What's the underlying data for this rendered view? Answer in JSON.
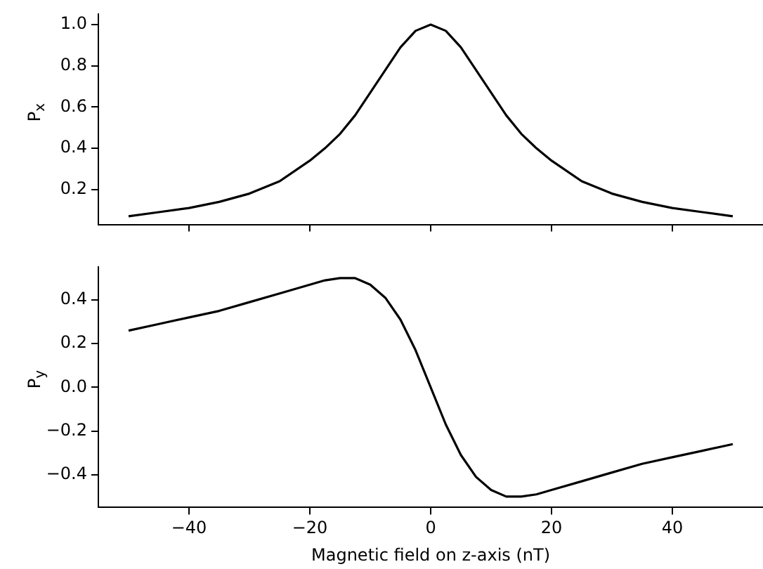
{
  "chart_data": [
    {
      "type": "line",
      "ylabel": "P$_{x}$",
      "x": [
        -50,
        -45,
        -40,
        -35,
        -30,
        -25,
        -20,
        -17.5,
        -15,
        -12.5,
        -10,
        -7.5,
        -5,
        -2.5,
        0,
        2.5,
        5,
        7.5,
        10,
        12.5,
        15,
        17.5,
        20,
        25,
        30,
        35,
        40,
        45,
        50
      ],
      "series": [
        {
          "color": "#000000",
          "values": [
            0.07,
            0.09,
            0.11,
            0.14,
            0.18,
            0.24,
            0.34,
            0.4,
            0.47,
            0.56,
            0.67,
            0.78,
            0.89,
            0.97,
            1.0,
            0.97,
            0.89,
            0.78,
            0.67,
            0.56,
            0.47,
            0.4,
            0.34,
            0.24,
            0.18,
            0.14,
            0.11,
            0.09,
            0.07
          ]
        }
      ],
      "xlim": [
        -55,
        55
      ],
      "xticks": [
        {
          "value": -40,
          "label": null
        },
        {
          "value": -20,
          "label": null
        },
        {
          "value": 0,
          "label": null
        },
        {
          "value": 20,
          "label": null
        },
        {
          "value": 40,
          "label": null
        }
      ],
      "ylim": [
        0.03,
        1.05
      ],
      "yticks": [
        0.2,
        0.4,
        0.6,
        0.8,
        {
          "value": 1,
          "label": "1.0"
        }
      ],
      "tick_labels": "y",
      "grid": false,
      "legend": false,
      "marker": "none",
      "line_style": "solid"
    },
    {
      "type": "line",
      "xlabel": "Magnetic field on z-axis (nT)",
      "ylabel": "P$_{y}$",
      "x": [
        -50,
        -45,
        -40,
        -35,
        -30,
        -25,
        -20,
        -17.5,
        -15,
        -12.5,
        -10,
        -7.5,
        -5,
        -2.5,
        0,
        2.5,
        5,
        7.5,
        10,
        12.5,
        15,
        17.5,
        20,
        25,
        30,
        35,
        40,
        45,
        50
      ],
      "series": [
        {
          "color": "#000000",
          "values": [
            0.26,
            0.29,
            0.32,
            0.35,
            0.39,
            0.43,
            0.47,
            0.49,
            0.5,
            0.5,
            0.47,
            0.41,
            0.31,
            0.17,
            0,
            -0.17,
            -0.31,
            -0.41,
            -0.47,
            -0.5,
            -0.5,
            -0.49,
            -0.47,
            -0.43,
            -0.39,
            -0.35,
            -0.32,
            -0.29,
            -0.26
          ]
        }
      ],
      "xlim": [
        -55,
        55
      ],
      "xticks": [
        {
          "value": -40,
          "label": "−40"
        },
        {
          "value": -20,
          "label": "−20"
        },
        0,
        20,
        40
      ],
      "ylim": [
        -0.55,
        0.55
      ],
      "yticks": [
        {
          "value": -0.4,
          "label": "−0.4"
        },
        {
          "value": -0.2,
          "label": "−0.2"
        },
        {
          "value": 0,
          "label": "0.0"
        },
        0.2,
        0.4
      ],
      "grid": false,
      "legend": false,
      "marker": "none",
      "line_style": "solid"
    }
  ]
}
